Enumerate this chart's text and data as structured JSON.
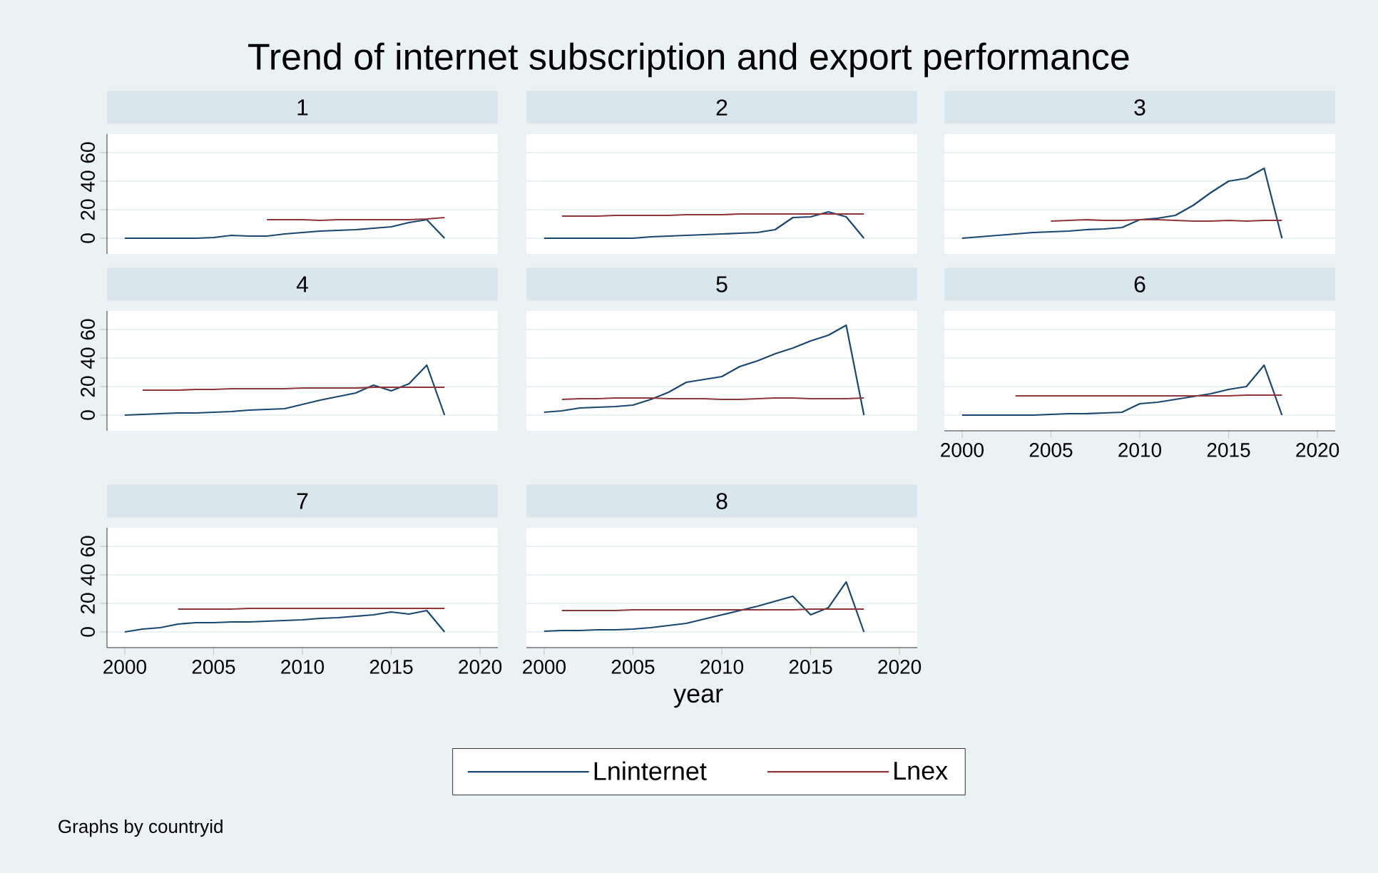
{
  "chart_data": [
    {
      "type": "line",
      "title": "1",
      "annotations": [
        "Trend of internet subscription and export performance"
      ],
      "xlim": [
        1999,
        2021
      ],
      "ylim": [
        -11,
        73
      ],
      "xticks": [
        2000,
        2005,
        2010,
        2015,
        2020
      ],
      "yticks": [
        0,
        20,
        40,
        60
      ],
      "grid": "y",
      "tick_labels": "y",
      "series": [
        {
          "color": "#1a476f",
          "x": [
            2000,
            2001,
            2002,
            2003,
            2004,
            2005,
            2006,
            2007,
            2008,
            2009,
            2010,
            2011,
            2012,
            2013,
            2014,
            2015,
            2016,
            2017,
            2018
          ],
          "values": [
            0,
            0,
            0,
            0,
            0,
            0.5,
            2,
            1.5,
            1.5,
            3,
            4,
            5,
            5.5,
            6,
            7,
            8,
            11,
            13,
            0
          ]
        },
        {
          "color": "#90353b",
          "x": [
            2008,
            2009,
            2010,
            2011,
            2012,
            2013,
            2014,
            2015,
            2016,
            2017,
            2018
          ],
          "values": [
            13,
            13,
            13,
            12.5,
            13,
            13,
            13,
            13,
            13,
            13.5,
            14.5
          ]
        }
      ]
    },
    {
      "type": "line",
      "title": "2",
      "xlim": [
        1999,
        2021
      ],
      "ylim": [
        -11,
        73
      ],
      "xticks": [
        2000,
        2005,
        2010,
        2015,
        2020
      ],
      "yticks": [
        0,
        20,
        40,
        60
      ],
      "grid": "y",
      "tick_labels": false,
      "series": [
        {
          "color": "#1a476f",
          "x": [
            2000,
            2001,
            2002,
            2003,
            2004,
            2005,
            2006,
            2007,
            2008,
            2009,
            2010,
            2011,
            2012,
            2013,
            2014,
            2015,
            2016,
            2017,
            2018
          ],
          "values": [
            0,
            0,
            0,
            0,
            0,
            0,
            1,
            1.5,
            2,
            2.5,
            3,
            3.5,
            4,
            6,
            14.5,
            15,
            18.5,
            15,
            0
          ]
        },
        {
          "color": "#90353b",
          "x": [
            2001,
            2002,
            2003,
            2004,
            2005,
            2006,
            2007,
            2008,
            2009,
            2010,
            2011,
            2012,
            2013,
            2014,
            2015,
            2016,
            2017,
            2018
          ],
          "values": [
            15.5,
            15.5,
            15.5,
            16,
            16,
            16,
            16,
            16.5,
            16.5,
            16.5,
            17,
            17,
            17,
            17,
            17,
            17,
            17,
            17
          ]
        }
      ]
    },
    {
      "type": "line",
      "title": "3",
      "xlim": [
        1999,
        2021
      ],
      "ylim": [
        -11,
        73
      ],
      "xticks": [
        2000,
        2005,
        2010,
        2015,
        2020
      ],
      "yticks": [
        0,
        20,
        40,
        60
      ],
      "grid": "y",
      "tick_labels": false,
      "series": [
        {
          "color": "#1a476f",
          "x": [
            2000,
            2001,
            2002,
            2003,
            2004,
            2005,
            2006,
            2007,
            2008,
            2009,
            2010,
            2011,
            2012,
            2013,
            2014,
            2015,
            2016,
            2017,
            2018
          ],
          "values": [
            0,
            1,
            2,
            3,
            4,
            4.5,
            5,
            6,
            6.5,
            7.5,
            13,
            14,
            16,
            23,
            32,
            40,
            42,
            49,
            0
          ]
        },
        {
          "color": "#90353b",
          "x": [
            2005,
            2006,
            2007,
            2008,
            2009,
            2010,
            2011,
            2012,
            2013,
            2014,
            2015,
            2016,
            2017,
            2018
          ],
          "values": [
            12,
            12.5,
            13,
            12.5,
            12.5,
            13,
            13,
            12.5,
            12,
            12,
            12.5,
            12,
            12.5,
            12.5
          ]
        }
      ]
    },
    {
      "type": "line",
      "title": "4",
      "xlim": [
        1999,
        2021
      ],
      "ylim": [
        -11,
        73
      ],
      "xticks": [
        2000,
        2005,
        2010,
        2015,
        2020
      ],
      "yticks": [
        0,
        20,
        40,
        60
      ],
      "grid": "y",
      "tick_labels": "y",
      "series": [
        {
          "color": "#1a476f",
          "x": [
            2000,
            2001,
            2002,
            2003,
            2004,
            2005,
            2006,
            2007,
            2008,
            2009,
            2010,
            2011,
            2012,
            2013,
            2014,
            2015,
            2016,
            2017,
            2018
          ],
          "values": [
            0,
            0.5,
            1,
            1.5,
            1.5,
            2,
            2.5,
            3.5,
            4,
            4.5,
            7.5,
            10.5,
            13,
            15.5,
            21,
            17,
            22,
            35,
            0
          ]
        },
        {
          "color": "#90353b",
          "x": [
            2001,
            2002,
            2003,
            2004,
            2005,
            2006,
            2007,
            2008,
            2009,
            2010,
            2011,
            2012,
            2013,
            2014,
            2015,
            2016,
            2017,
            2018
          ],
          "values": [
            17.5,
            17.5,
            17.5,
            18,
            18,
            18.5,
            18.5,
            18.5,
            18.5,
            19,
            19,
            19,
            19,
            19.5,
            19.5,
            19.5,
            19.5,
            19.5
          ]
        }
      ]
    },
    {
      "type": "line",
      "title": "5",
      "xlim": [
        1999,
        2021
      ],
      "ylim": [
        -11,
        73
      ],
      "xticks": [
        2000,
        2005,
        2010,
        2015,
        2020
      ],
      "yticks": [
        0,
        20,
        40,
        60
      ],
      "grid": "y",
      "tick_labels": false,
      "series": [
        {
          "color": "#1a476f",
          "x": [
            2000,
            2001,
            2002,
            2003,
            2004,
            2005,
            2006,
            2007,
            2008,
            2009,
            2010,
            2011,
            2012,
            2013,
            2014,
            2015,
            2016,
            2017,
            2018
          ],
          "values": [
            2,
            3,
            5,
            5.5,
            6,
            7,
            11,
            16,
            23,
            25,
            27,
            34,
            38,
            43,
            47,
            52,
            56,
            63,
            0
          ]
        },
        {
          "color": "#90353b",
          "x": [
            2001,
            2002,
            2003,
            2004,
            2005,
            2006,
            2007,
            2008,
            2009,
            2010,
            2011,
            2012,
            2013,
            2014,
            2015,
            2016,
            2017,
            2018
          ],
          "values": [
            11,
            11.5,
            11.5,
            12,
            12,
            12,
            11.5,
            11.5,
            11.5,
            11,
            11,
            11.5,
            12,
            12,
            11.5,
            11.5,
            11.5,
            12
          ]
        }
      ]
    },
    {
      "type": "line",
      "title": "6",
      "xlim": [
        1999,
        2021
      ],
      "ylim": [
        -11,
        73
      ],
      "xticks": [
        2000,
        2005,
        2010,
        2015,
        2020
      ],
      "yticks": [
        0,
        20,
        40,
        60
      ],
      "grid": "y",
      "tick_labels": "x",
      "series": [
        {
          "color": "#1a476f",
          "x": [
            2000,
            2001,
            2002,
            2003,
            2004,
            2005,
            2006,
            2007,
            2008,
            2009,
            2010,
            2011,
            2012,
            2013,
            2014,
            2015,
            2016,
            2017,
            2018
          ],
          "values": [
            0,
            0,
            0,
            0,
            0,
            0.5,
            1,
            1,
            1.5,
            2,
            8,
            9,
            11,
            13,
            15,
            18,
            20,
            35,
            0
          ]
        },
        {
          "color": "#90353b",
          "x": [
            2003,
            2004,
            2005,
            2006,
            2007,
            2008,
            2009,
            2010,
            2011,
            2012,
            2013,
            2014,
            2015,
            2016,
            2017,
            2018
          ],
          "values": [
            13.5,
            13.5,
            13.5,
            13.5,
            13.5,
            13.5,
            13.5,
            13.5,
            13.5,
            13.5,
            13.5,
            13.5,
            13.5,
            14,
            14,
            14
          ]
        }
      ]
    },
    {
      "type": "line",
      "title": "7",
      "xlim": [
        1999,
        2021
      ],
      "ylim": [
        -11,
        73
      ],
      "xticks": [
        2000,
        2005,
        2010,
        2015,
        2020
      ],
      "yticks": [
        0,
        20,
        40,
        60
      ],
      "grid": "y",
      "series": [
        {
          "color": "#1a476f",
          "x": [
            2000,
            2001,
            2002,
            2003,
            2004,
            2005,
            2006,
            2007,
            2008,
            2009,
            2010,
            2011,
            2012,
            2013,
            2014,
            2015,
            2016,
            2017,
            2018
          ],
          "values": [
            0,
            2,
            3,
            5.5,
            6.5,
            6.5,
            7,
            7,
            7.5,
            8,
            8.5,
            9.5,
            10,
            11,
            12,
            14,
            12.5,
            15,
            0
          ]
        },
        {
          "color": "#90353b",
          "x": [
            2003,
            2004,
            2005,
            2006,
            2007,
            2008,
            2009,
            2010,
            2011,
            2012,
            2013,
            2014,
            2015,
            2016,
            2017,
            2018
          ],
          "values": [
            16,
            16,
            16,
            16,
            16.5,
            16.5,
            16.5,
            16.5,
            16.5,
            16.5,
            16.5,
            16.5,
            16.5,
            16.5,
            16.5,
            16.5
          ]
        }
      ]
    },
    {
      "type": "line",
      "title": "8",
      "xlabel": "year",
      "annotations": [
        "Graphs by countryid"
      ],
      "legend": "bottom",
      "xlim": [
        1999,
        2021
      ],
      "ylim": [
        -11,
        73
      ],
      "xticks": [
        2000,
        2005,
        2010,
        2015,
        2020
      ],
      "yticks": [
        0,
        20,
        40,
        60
      ],
      "grid": "y",
      "tick_labels": "x",
      "series": [
        {
          "name": "Lninternet",
          "color": "#1a476f",
          "x": [
            2000,
            2001,
            2002,
            2003,
            2004,
            2005,
            2006,
            2007,
            2008,
            2009,
            2010,
            2011,
            2012,
            2013,
            2014,
            2015,
            2016,
            2017,
            2018
          ],
          "values": [
            0.5,
            1,
            1,
            1.5,
            1.5,
            2,
            3,
            4.5,
            6,
            9,
            12,
            15,
            18,
            21.5,
            25,
            12,
            17,
            35,
            0
          ]
        },
        {
          "name": "Lnex",
          "color": "#90353b",
          "x": [
            2001,
            2002,
            2003,
            2004,
            2005,
            2006,
            2007,
            2008,
            2009,
            2010,
            2011,
            2012,
            2013,
            2014,
            2015,
            2016,
            2017,
            2018
          ],
          "values": [
            15,
            15,
            15,
            15,
            15.5,
            15.5,
            15.5,
            15.5,
            15.5,
            15.5,
            15.5,
            15.5,
            15.5,
            15.5,
            16,
            16,
            16,
            16
          ]
        }
      ]
    }
  ]
}
